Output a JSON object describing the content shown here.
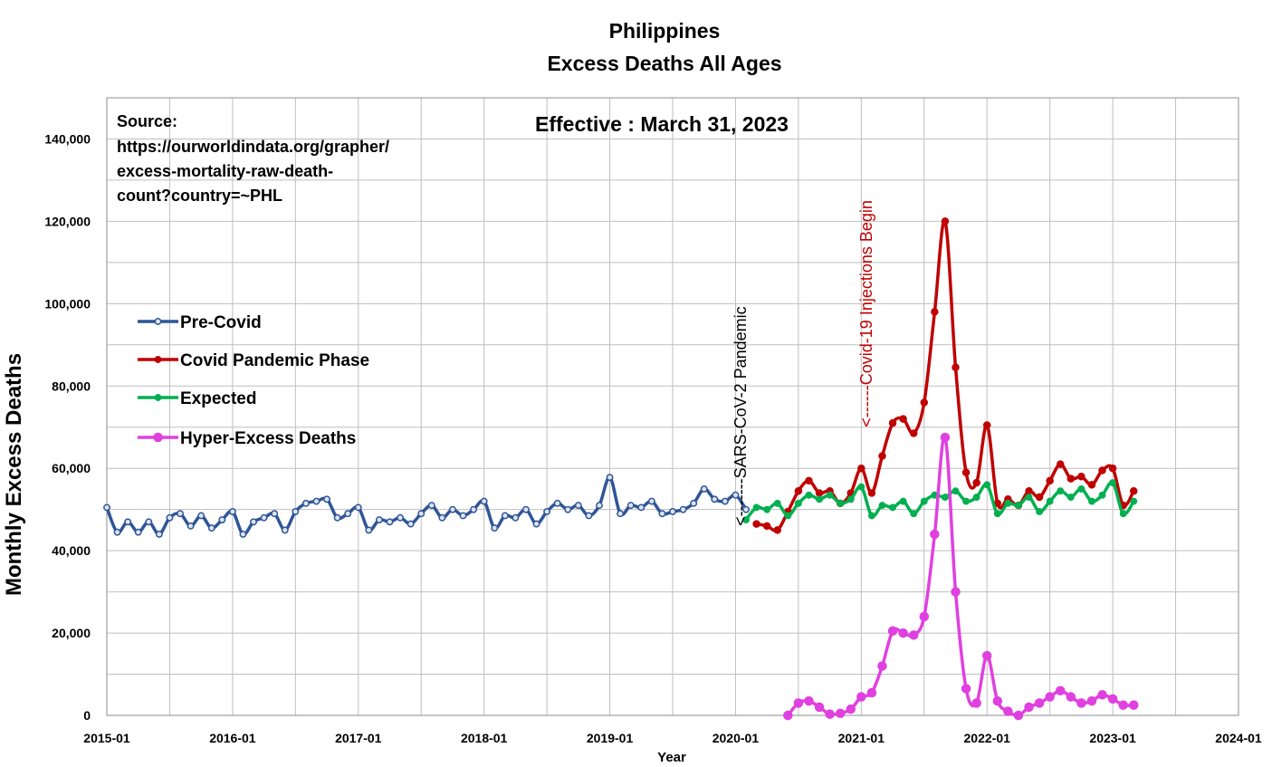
{
  "chart_data": {
    "type": "line",
    "title": "Philippines",
    "subtitle": "Excess Deaths All Ages",
    "xlabel": "Year",
    "ylabel": "Monthly Excess Deaths",
    "ylim": [
      0,
      150000
    ],
    "y_ticks": [
      0,
      20000,
      40000,
      60000,
      80000,
      100000,
      120000,
      140000
    ],
    "y_tick_labels": [
      "0",
      "20,000",
      "40,000",
      "60,000",
      "80,000",
      "100,000",
      "120,000",
      "140,000"
    ],
    "x_ticks": [
      "2015-01",
      "2016-01",
      "2017-01",
      "2018-01",
      "2019-01",
      "2020-01",
      "2021-01",
      "2022-01",
      "2023-01",
      "2024-01"
    ],
    "xlim": [
      "2015-01",
      "2024-01"
    ],
    "grid": true,
    "legend_position": "left-middle",
    "effective_label": "Effective :  March 31, 2023",
    "source_lines": [
      "Source:",
      "https://ourworldindata.org/grapher/",
      "excess-mortality-raw-death-",
      "count?country=~PHL"
    ],
    "annotations": [
      {
        "text": "<-------SARS-CoV-2 Pandemic",
        "x": "2020-02",
        "y": 46000,
        "color": "#000000"
      },
      {
        "text": "<------Covid-19 Injections Begin",
        "x": "2021-02",
        "y": 70000,
        "color": "#c00000"
      }
    ],
    "series": [
      {
        "name": "Pre-Covid",
        "color": "#2f5597",
        "x": [
          "2015-01",
          "2015-02",
          "2015-03",
          "2015-04",
          "2015-05",
          "2015-06",
          "2015-07",
          "2015-08",
          "2015-09",
          "2015-10",
          "2015-11",
          "2015-12",
          "2016-01",
          "2016-02",
          "2016-03",
          "2016-04",
          "2016-05",
          "2016-06",
          "2016-07",
          "2016-08",
          "2016-09",
          "2016-10",
          "2016-11",
          "2016-12",
          "2017-01",
          "2017-02",
          "2017-03",
          "2017-04",
          "2017-05",
          "2017-06",
          "2017-07",
          "2017-08",
          "2017-09",
          "2017-10",
          "2017-11",
          "2017-12",
          "2018-01",
          "2018-02",
          "2018-03",
          "2018-04",
          "2018-05",
          "2018-06",
          "2018-07",
          "2018-08",
          "2018-09",
          "2018-10",
          "2018-11",
          "2018-12",
          "2019-01",
          "2019-02",
          "2019-03",
          "2019-04",
          "2019-05",
          "2019-06",
          "2019-07",
          "2019-08",
          "2019-09",
          "2019-10",
          "2019-11",
          "2019-12",
          "2020-01",
          "2020-02"
        ],
        "values": [
          50500,
          44500,
          47000,
          44500,
          47000,
          44000,
          48000,
          49000,
          46000,
          48500,
          45500,
          47500,
          49500,
          44000,
          47000,
          48000,
          49000,
          45000,
          49500,
          51500,
          52000,
          52500,
          48000,
          49000,
          50500,
          45000,
          47500,
          47000,
          48000,
          46500,
          49000,
          51000,
          48000,
          50000,
          48500,
          50000,
          52000,
          45500,
          48500,
          48000,
          50000,
          46500,
          49500,
          51500,
          50000,
          51000,
          48500,
          51000,
          57800,
          49000,
          51000,
          50500,
          52000,
          49000,
          49500,
          50000,
          51500,
          55000,
          52500,
          52000,
          53500,
          50000
        ]
      },
      {
        "name": "Covid Pandemic Phase",
        "color": "#c00000",
        "x": [
          "2020-03",
          "2020-04",
          "2020-05",
          "2020-06",
          "2020-07",
          "2020-08",
          "2020-09",
          "2020-10",
          "2020-11",
          "2020-12",
          "2021-01",
          "2021-02",
          "2021-03",
          "2021-04",
          "2021-05",
          "2021-06",
          "2021-07",
          "2021-08",
          "2021-09",
          "2021-10",
          "2021-11",
          "2021-12",
          "2022-01",
          "2022-02",
          "2022-03",
          "2022-04",
          "2022-05",
          "2022-06",
          "2022-07",
          "2022-08",
          "2022-09",
          "2022-10",
          "2022-11",
          "2022-12",
          "2023-01",
          "2023-02",
          "2023-03"
        ],
        "values": [
          46500,
          46000,
          45000,
          49500,
          54500,
          57000,
          54000,
          54500,
          51500,
          54000,
          60000,
          54000,
          63000,
          71000,
          72000,
          68500,
          76000,
          98000,
          120000,
          84500,
          59000,
          56500,
          70500,
          51500,
          52500,
          51000,
          54500,
          53000,
          57000,
          61000,
          57500,
          58000,
          56000,
          59500,
          60000,
          51000,
          54500
        ]
      },
      {
        "name": "Expected",
        "color": "#00b050",
        "x": [
          "2020-02",
          "2020-03",
          "2020-04",
          "2020-05",
          "2020-06",
          "2020-07",
          "2020-08",
          "2020-09",
          "2020-10",
          "2020-11",
          "2020-12",
          "2021-01",
          "2021-02",
          "2021-03",
          "2021-04",
          "2021-05",
          "2021-06",
          "2021-07",
          "2021-08",
          "2021-09",
          "2021-10",
          "2021-11",
          "2021-12",
          "2022-01",
          "2022-02",
          "2022-03",
          "2022-04",
          "2022-05",
          "2022-06",
          "2022-07",
          "2022-08",
          "2022-09",
          "2022-10",
          "2022-11",
          "2022-12",
          "2023-01",
          "2023-02",
          "2023-03"
        ],
        "values": [
          47500,
          50500,
          50000,
          51500,
          48500,
          51500,
          53500,
          52500,
          53500,
          51500,
          52500,
          55500,
          48500,
          51000,
          50500,
          52000,
          49000,
          52000,
          53500,
          53000,
          54500,
          52000,
          53000,
          56000,
          49000,
          51500,
          51000,
          53000,
          49500,
          52000,
          54500,
          53000,
          55000,
          52000,
          53500,
          56500,
          49000,
          52000
        ]
      },
      {
        "name": "Hyper-Excess Deaths",
        "color": "#e040e0",
        "x": [
          "2020-06",
          "2020-07",
          "2020-08",
          "2020-09",
          "2020-10",
          "2020-11",
          "2020-12",
          "2021-01",
          "2021-02",
          "2021-03",
          "2021-04",
          "2021-05",
          "2021-06",
          "2021-07",
          "2021-08",
          "2021-09",
          "2021-10",
          "2021-11",
          "2021-12",
          "2022-01",
          "2022-02",
          "2022-03",
          "2022-04",
          "2022-05",
          "2022-06",
          "2022-07",
          "2022-08",
          "2022-09",
          "2022-10",
          "2022-11",
          "2022-12",
          "2023-01",
          "2023-02",
          "2023-03"
        ],
        "values": [
          0,
          3000,
          3500,
          2000,
          300,
          500,
          1500,
          4500,
          5500,
          12000,
          20500,
          20000,
          19500,
          24000,
          44000,
          67500,
          30000,
          6500,
          3000,
          14500,
          3500,
          1000,
          0,
          2000,
          3000,
          4500,
          6000,
          4500,
          3000,
          3500,
          5000,
          4000,
          2500,
          2500
        ]
      }
    ]
  }
}
